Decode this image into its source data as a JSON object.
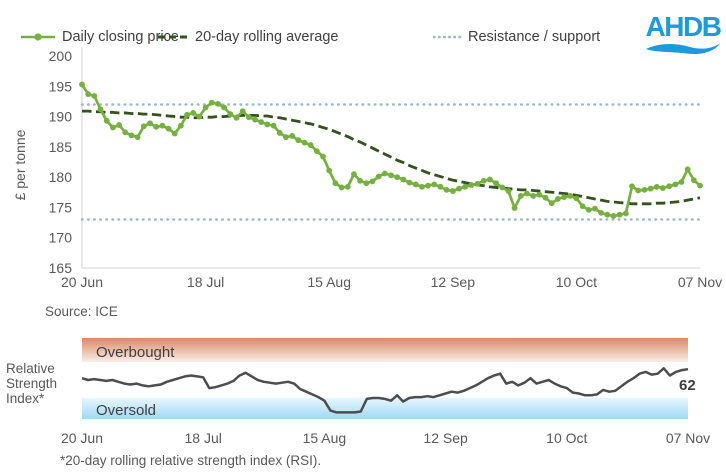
{
  "legend": {
    "items": [
      {
        "label": "Daily closing price"
      },
      {
        "label": "20-day rolling average"
      },
      {
        "label": "Resistance / support"
      }
    ]
  },
  "logo": {
    "text": "AHDB"
  },
  "colors": {
    "daily": "#76B041",
    "average": "#35511F",
    "resistance_support": "#9EB6C7",
    "rsi_line": "#4D4D4D",
    "axis": "#D9D9D9",
    "text": "#595959",
    "logo_blue": "#1B9CD9",
    "overbought_top": "#D78A65",
    "overbought_bottom": "#FBEEE8",
    "oversold_top": "#E8F6FE",
    "oversold_bottom": "#9FD9F5"
  },
  "chart_data": [
    {
      "type": "line",
      "title": "",
      "xlabel": "",
      "ylabel": "£ per tonne",
      "ylim": [
        165,
        200
      ],
      "yticks": [
        165,
        170,
        175,
        180,
        185,
        190,
        195,
        200
      ],
      "x_tick_labels": [
        "20 Jun",
        "18 Jul",
        "15 Aug",
        "12 Sep",
        "10 Oct",
        "07 Nov"
      ],
      "resistance_level": 192,
      "support_level": 173,
      "source": "Source: ICE",
      "legend_position": "top",
      "grid": false,
      "series": [
        {
          "name": "Daily closing price",
          "style": "solid_with_markers",
          "values": [
            195.3,
            193.7,
            193.4,
            191.2,
            189.3,
            188.2,
            188.6,
            187.4,
            186.9,
            186.6,
            188.4,
            188.9,
            188.3,
            188.5,
            188.0,
            187.2,
            188.5,
            190.3,
            190.6,
            190.0,
            191.5,
            192.3,
            192.1,
            191.5,
            190.4,
            189.8,
            190.9,
            189.9,
            189.5,
            189.1,
            188.7,
            188.5,
            187.3,
            186.6,
            186.8,
            186.1,
            185.7,
            185.3,
            184.3,
            183.4,
            181.1,
            179.0,
            178.3,
            178.4,
            180.5,
            179.4,
            179.0,
            179.3,
            180.1,
            180.6,
            180.3,
            180.0,
            179.6,
            179.1,
            178.8,
            178.4,
            178.6,
            178.8,
            178.4,
            177.9,
            177.7,
            178.1,
            178.4,
            178.7,
            178.9,
            179.4,
            179.6,
            179.0,
            178.3,
            177.7,
            174.9,
            176.9,
            177.3,
            176.9,
            177.1,
            176.6,
            175.7,
            176.4,
            176.7,
            176.9,
            176.5,
            175.2,
            174.6,
            174.8,
            174.1,
            173.8,
            173.6,
            173.8,
            174.0,
            178.5,
            177.8,
            177.9,
            178.1,
            178.4,
            178.2,
            178.5,
            178.8,
            179.2,
            181.3,
            179.5,
            178.6
          ]
        },
        {
          "name": "20-day rolling average",
          "style": "dashed",
          "values": [
            190.9,
            190.9,
            190.8,
            190.8,
            190.7,
            190.7,
            190.6,
            190.6,
            190.5,
            190.5,
            190.4,
            190.4,
            190.3,
            190.2,
            190.1,
            190.0,
            189.9,
            189.9,
            189.8,
            189.8,
            189.9,
            189.9,
            190.0,
            190.0,
            190.1,
            190.1,
            190.2,
            190.2,
            190.2,
            190.1,
            190.1,
            189.9,
            189.8,
            189.6,
            189.4,
            189.2,
            189.0,
            188.8,
            188.5,
            188.2,
            187.9,
            187.5,
            187.1,
            186.7,
            186.2,
            185.8,
            185.3,
            184.8,
            184.3,
            183.8,
            183.3,
            182.8,
            182.4,
            181.9,
            181.5,
            181.1,
            180.7,
            180.4,
            180.1,
            179.8,
            179.5,
            179.3,
            179.1,
            178.9,
            178.7,
            178.6,
            178.4,
            178.3,
            178.2,
            178.1,
            178.0,
            177.9,
            177.9,
            177.8,
            177.7,
            177.6,
            177.5,
            177.4,
            177.3,
            177.2,
            177.0,
            176.8,
            176.6,
            176.4,
            176.2,
            176.0,
            175.9,
            175.8,
            175.7,
            175.6,
            175.6,
            175.6,
            175.6,
            175.7,
            175.7,
            175.8,
            175.9,
            176.0,
            176.2,
            176.4,
            176.6
          ]
        },
        {
          "name": "Resistance / support",
          "style": "dotted",
          "values": [
            192,
            173
          ]
        }
      ]
    },
    {
      "type": "line",
      "name": "Relative Strength Index",
      "label_lines": [
        "Relative",
        "Strength",
        "Index*"
      ],
      "x_tick_labels": [
        "20 Jun",
        "18 Jul",
        "15 Aug",
        "12 Sep",
        "10 Oct",
        "07 Nov"
      ],
      "bands": [
        {
          "label": "Overbought",
          "range": [
            70,
            100
          ]
        },
        {
          "label": "Oversold",
          "range": [
            0,
            30
          ]
        }
      ],
      "last_value_label": "62",
      "footnote": "*20-day rolling relative strength index (RSI).",
      "values": [
        52,
        50,
        51,
        50,
        49,
        50,
        48,
        46,
        45,
        46,
        44,
        43,
        44,
        45,
        48,
        50,
        52,
        54,
        55,
        54,
        53,
        41,
        42,
        44,
        46,
        49,
        55,
        58,
        54,
        50,
        48,
        47,
        46,
        47,
        48,
        46,
        40,
        37,
        34,
        31,
        27,
        16,
        14,
        14,
        14,
        14,
        15,
        29,
        30,
        30,
        29,
        27,
        33,
        26,
        30,
        31,
        31,
        32,
        31,
        33,
        35,
        37,
        36,
        38,
        41,
        44,
        48,
        52,
        55,
        57,
        46,
        48,
        44,
        47,
        52,
        46,
        48,
        50,
        46,
        43,
        41,
        36,
        35,
        33,
        33,
        34,
        39,
        37,
        38,
        43,
        48,
        52,
        57,
        59,
        56,
        57,
        63,
        55,
        59,
        61,
        62
      ]
    }
  ]
}
